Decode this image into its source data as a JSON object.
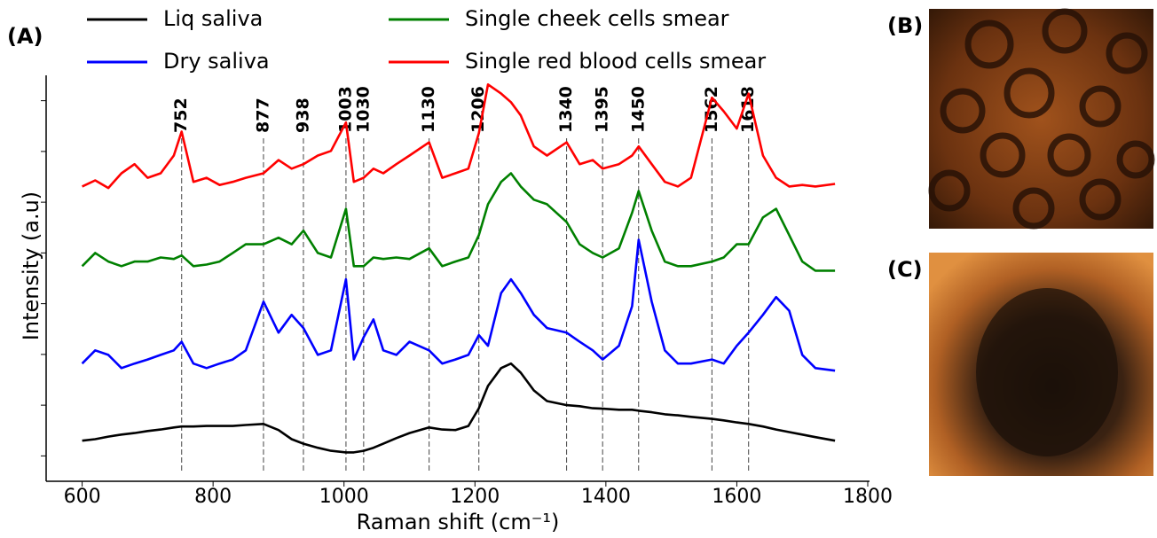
{
  "chart_data": {
    "type": "line",
    "panel_labels": [
      "(A)",
      "(B)",
      "(C)"
    ],
    "xlabel": "Raman shift (cm⁻¹)",
    "ylabel": "Intensity (a.u)",
    "xlim": [
      545,
      1800
    ],
    "xticks": [
      600,
      800,
      1000,
      1200,
      1400,
      1600,
      1800
    ],
    "ylim": [
      -0.5,
      7.5
    ],
    "yticks": [
      0,
      1,
      2,
      3,
      4,
      5,
      6,
      7
    ],
    "legend": "upper left",
    "peaks": [
      752,
      877,
      938,
      1003,
      1030,
      1130,
      1206,
      1340,
      1395,
      1450,
      1562,
      1618
    ],
    "x": [
      600,
      620,
      640,
      660,
      680,
      700,
      720,
      740,
      752,
      770,
      790,
      810,
      830,
      850,
      877,
      900,
      920,
      938,
      960,
      980,
      1003,
      1015,
      1030,
      1045,
      1060,
      1080,
      1100,
      1130,
      1150,
      1170,
      1190,
      1206,
      1220,
      1240,
      1255,
      1270,
      1290,
      1310,
      1340,
      1360,
      1380,
      1395,
      1420,
      1440,
      1450,
      1470,
      1490,
      1510,
      1530,
      1562,
      1580,
      1600,
      1618,
      1640,
      1660,
      1680,
      1700,
      1720,
      1750
    ],
    "series": [
      {
        "name": "Liq saliva",
        "color": "#000000",
        "values": [
          0.3,
          0.33,
          0.38,
          0.42,
          0.45,
          0.49,
          0.52,
          0.56,
          0.58,
          0.58,
          0.59,
          0.59,
          0.59,
          0.61,
          0.63,
          0.51,
          0.33,
          0.24,
          0.16,
          0.1,
          0.07,
          0.07,
          0.1,
          0.16,
          0.24,
          0.35,
          0.45,
          0.56,
          0.52,
          0.51,
          0.59,
          0.94,
          1.38,
          1.73,
          1.82,
          1.64,
          1.29,
          1.08,
          1.0,
          0.98,
          0.94,
          0.93,
          0.91,
          0.91,
          0.89,
          0.86,
          0.82,
          0.8,
          0.77,
          0.73,
          0.7,
          0.66,
          0.63,
          0.58,
          0.52,
          0.47,
          0.42,
          0.37,
          0.3
        ]
      },
      {
        "name": "Dry saliva",
        "color": "#0000ff",
        "values": [
          1.82,
          2.08,
          1.99,
          1.73,
          1.82,
          1.9,
          1.99,
          2.08,
          2.25,
          1.82,
          1.73,
          1.82,
          1.9,
          2.08,
          3.04,
          2.43,
          2.78,
          2.52,
          1.99,
          2.08,
          3.48,
          1.9,
          2.34,
          2.69,
          2.08,
          1.99,
          2.25,
          2.08,
          1.82,
          1.9,
          1.99,
          2.38,
          2.17,
          3.21,
          3.48,
          3.21,
          2.78,
          2.52,
          2.43,
          2.25,
          2.08,
          1.9,
          2.17,
          2.95,
          4.26,
          3.04,
          2.08,
          1.82,
          1.82,
          1.9,
          1.82,
          2.17,
          2.43,
          2.78,
          3.13,
          2.86,
          1.99,
          1.73,
          1.68
        ]
      },
      {
        "name": "Single cheek cells smear",
        "color": "#008000",
        "values": [
          3.74,
          4.0,
          3.83,
          3.74,
          3.83,
          3.83,
          3.91,
          3.88,
          3.95,
          3.74,
          3.77,
          3.83,
          4.0,
          4.17,
          4.17,
          4.3,
          4.17,
          4.44,
          4.0,
          3.91,
          4.87,
          3.74,
          3.74,
          3.91,
          3.88,
          3.91,
          3.88,
          4.09,
          3.74,
          3.83,
          3.91,
          4.35,
          4.96,
          5.4,
          5.57,
          5.31,
          5.05,
          4.96,
          4.61,
          4.17,
          4.0,
          3.91,
          4.09,
          4.79,
          5.22,
          4.44,
          3.83,
          3.74,
          3.74,
          3.83,
          3.91,
          4.17,
          4.17,
          4.7,
          4.87,
          4.35,
          3.83,
          3.65,
          3.65
        ]
      },
      {
        "name": "Single red blood cells smear",
        "color": "#ff0000",
        "values": [
          5.31,
          5.43,
          5.28,
          5.57,
          5.75,
          5.48,
          5.57,
          5.92,
          6.39,
          5.4,
          5.48,
          5.34,
          5.4,
          5.48,
          5.57,
          5.83,
          5.66,
          5.75,
          5.92,
          6.01,
          6.57,
          5.4,
          5.48,
          5.66,
          5.57,
          5.75,
          5.92,
          6.18,
          5.48,
          5.57,
          5.66,
          6.36,
          7.32,
          7.14,
          6.97,
          6.71,
          6.1,
          5.92,
          6.18,
          5.75,
          5.83,
          5.66,
          5.75,
          5.92,
          6.1,
          5.75,
          5.4,
          5.31,
          5.48,
          7.06,
          6.79,
          6.45,
          7.14,
          5.92,
          5.48,
          5.31,
          5.34,
          5.31,
          5.36
        ]
      }
    ]
  }
}
